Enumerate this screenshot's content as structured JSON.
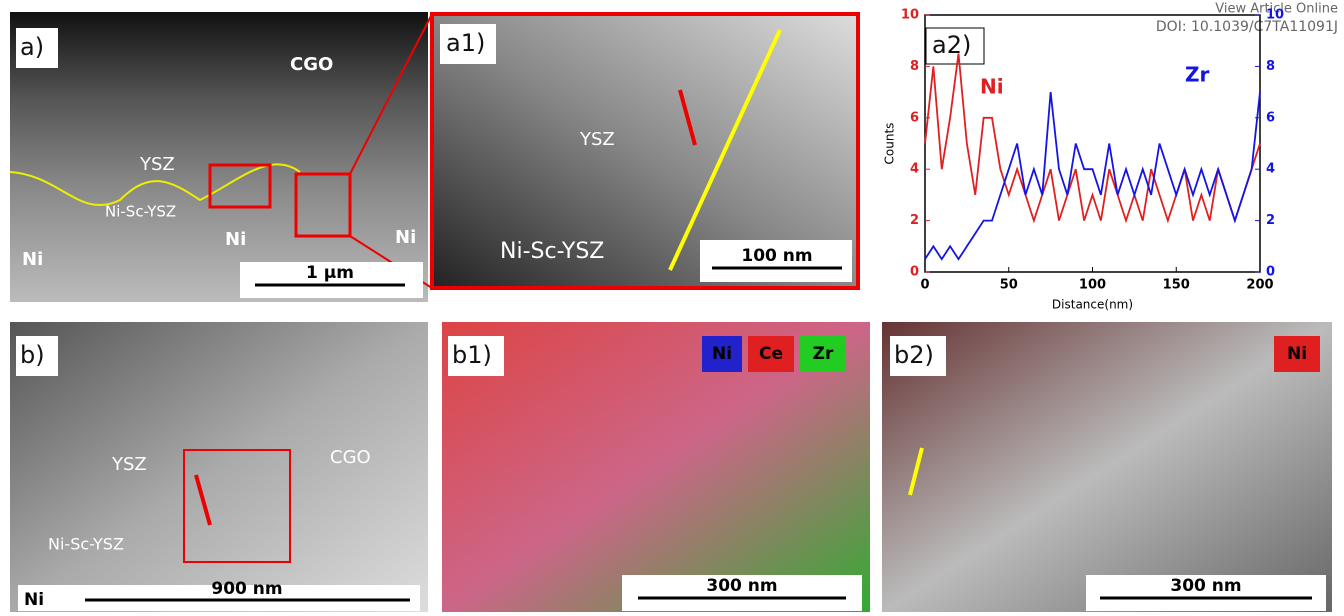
{
  "watermark": [
    "View Article Online",
    "DOI: 10.1039/C7TA11091J"
  ],
  "panels": [
    {
      "label": "a)",
      "texts": [
        "CGO",
        "YSZ",
        "Ni-Sc-YSZ",
        "Ni",
        "Ni",
        "Ni"
      ],
      "scale_bar": "1 µm"
    },
    {
      "label": "a1)",
      "texts": [
        "YSZ",
        "Ni-Sc-YSZ"
      ],
      "scale_bar": "100 nm"
    },
    {
      "label": "a2)"
    },
    {
      "label": "b)",
      "texts": [
        "YSZ",
        "CGO",
        "Ni-Sc-YSZ",
        "Ni"
      ],
      "scale_bar": "900 nm"
    },
    {
      "label": "b1)",
      "texts": [
        "Ni",
        "Ce",
        "Zr"
      ],
      "scale_bar": "300 nm"
    },
    {
      "label": "b2)",
      "texts": [
        "Ni"
      ],
      "scale_bar": "300 nm"
    }
  ],
  "chart_data": {
    "type": "line",
    "x_label": "Distance(nm)",
    "y_label": "Counts",
    "x": [
      0,
      5,
      10,
      15,
      20,
      25,
      30,
      35,
      40,
      45,
      50,
      55,
      60,
      65,
      70,
      75,
      80,
      85,
      90,
      95,
      100,
      105,
      110,
      115,
      120,
      125,
      130,
      135,
      140,
      145,
      150,
      155,
      160,
      165,
      170,
      175,
      180,
      185,
      190,
      195,
      200
    ],
    "xlim": [
      0,
      200
    ],
    "xticks": [
      0,
      50,
      100,
      150,
      200
    ],
    "ylim": [
      0,
      10
    ],
    "yticks": [
      0,
      2,
      4,
      6,
      8,
      10
    ],
    "y2lim": [
      0,
      10
    ],
    "y2ticks": [
      0,
      2,
      4,
      6,
      8,
      10
    ],
    "series": [
      {
        "name": "Ni",
        "color": "#e02020",
        "values": [
          5,
          8,
          4,
          6,
          8.5,
          5,
          3,
          6,
          6,
          4,
          3,
          4,
          3,
          2,
          3,
          4,
          2,
          3,
          4,
          2,
          3,
          2,
          4,
          3,
          2,
          3,
          2,
          4,
          3,
          2,
          3,
          4,
          2,
          3,
          2,
          4,
          3,
          2,
          3,
          4,
          5
        ]
      },
      {
        "name": "Zr",
        "color": "#1414e6",
        "axis": "y2",
        "values": [
          0.5,
          1,
          0.5,
          1,
          0.5,
          1,
          1.5,
          2,
          2,
          3,
          4,
          5,
          3,
          4,
          3,
          7,
          4,
          3,
          5,
          4,
          4,
          3,
          5,
          3,
          4,
          3,
          4,
          3,
          5,
          4,
          3,
          4,
          3,
          4,
          3,
          4,
          3,
          2,
          3,
          4,
          7
        ]
      }
    ]
  }
}
